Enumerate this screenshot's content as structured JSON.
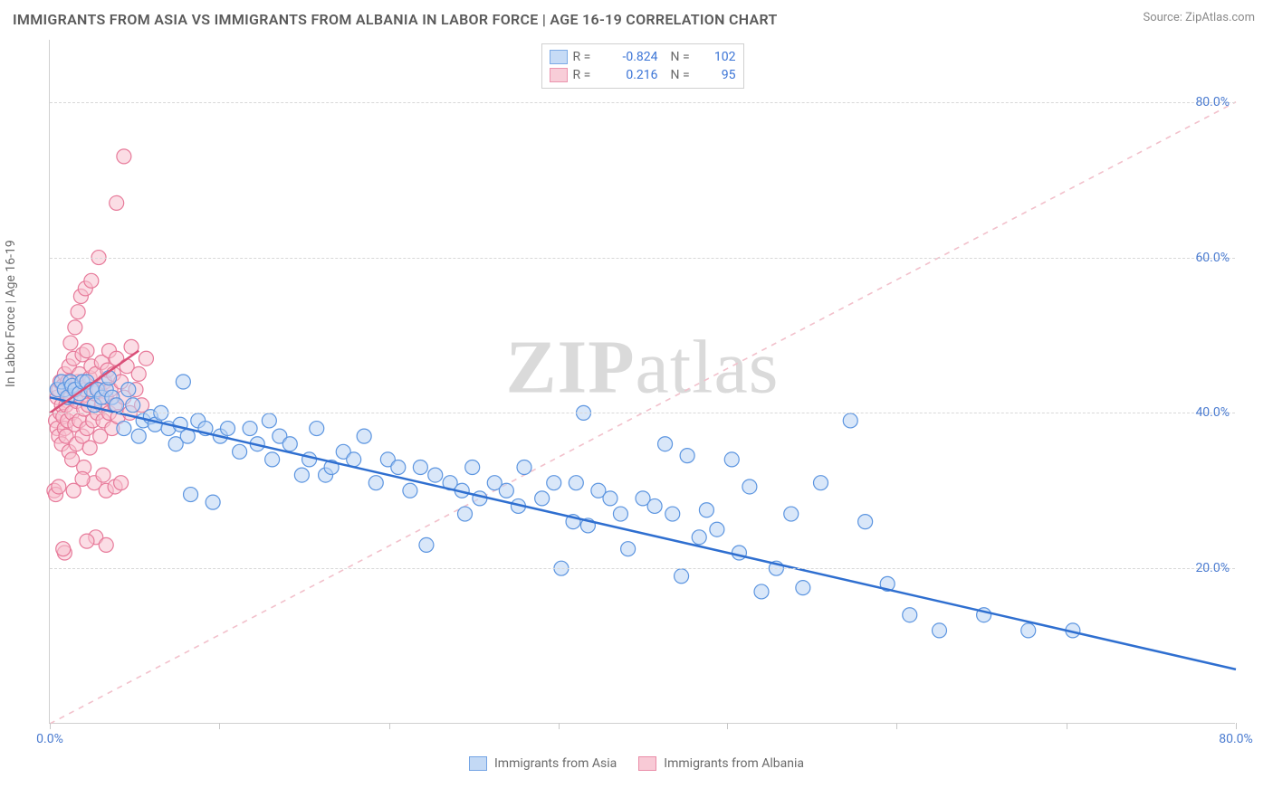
{
  "title": "IMMIGRANTS FROM ASIA VS IMMIGRANTS FROM ALBANIA IN LABOR FORCE | AGE 16-19 CORRELATION CHART",
  "source_label": "Source: ZipAtlas.com",
  "watermark_bold": "ZIP",
  "watermark_light": "atlas",
  "chart": {
    "type": "scatter",
    "background_color": "#ffffff",
    "grid_color": "#d8d8d8",
    "axis_color": "#d0d0d0",
    "tick_color": "#c8c8c8",
    "label_color": "#4a7bd0",
    "axis_title_color": "#6a6a6a",
    "xlim": [
      0,
      80
    ],
    "ylim": [
      0,
      88
    ],
    "x_ticks": [
      0,
      11.4,
      22.9,
      34.3,
      45.7,
      57.1,
      68.6,
      80
    ],
    "x_tick_labels": {
      "0": "0.0%",
      "80": "80.0%"
    },
    "y_gridlines": [
      20,
      40,
      60,
      80
    ],
    "y_tick_labels": {
      "20": "20.0%",
      "40": "40.0%",
      "60": "60.0%",
      "80": "80.0%"
    },
    "y_axis_title": "In Labor Force | Age 16-19",
    "marker_radius": 8,
    "marker_stroke_width": 1.2,
    "diagonal_color": "#f2c0cb",
    "series": [
      {
        "name": "Immigrants from Asia",
        "fill": "#b9d3f4",
        "stroke": "#5c95e0",
        "fill_opacity": 0.55,
        "r_value": "-0.824",
        "n_value": "102",
        "trend": {
          "x1": 0,
          "y1": 42,
          "x2": 80,
          "y2": 7,
          "color": "#2f6fd0",
          "width": 2.5
        },
        "points": [
          [
            0.5,
            43
          ],
          [
            0.8,
            44
          ],
          [
            1.0,
            43
          ],
          [
            1.2,
            42
          ],
          [
            1.4,
            44
          ],
          [
            1.5,
            43.5
          ],
          [
            1.7,
            43
          ],
          [
            2.0,
            42.5
          ],
          [
            2.2,
            44
          ],
          [
            2.5,
            44
          ],
          [
            2.8,
            43
          ],
          [
            3.0,
            41
          ],
          [
            3.2,
            43
          ],
          [
            3.5,
            42
          ],
          [
            3.8,
            43
          ],
          [
            4.0,
            44.5
          ],
          [
            4.2,
            42
          ],
          [
            4.5,
            41
          ],
          [
            5.0,
            38
          ],
          [
            5.3,
            43
          ],
          [
            5.6,
            41
          ],
          [
            6.0,
            37
          ],
          [
            6.3,
            39
          ],
          [
            6.8,
            39.5
          ],
          [
            7.1,
            38.5
          ],
          [
            7.5,
            40
          ],
          [
            8.0,
            38
          ],
          [
            8.5,
            36
          ],
          [
            8.8,
            38.5
          ],
          [
            9.3,
            37
          ],
          [
            9.0,
            44
          ],
          [
            9.5,
            29.5
          ],
          [
            10.0,
            39
          ],
          [
            10.5,
            38
          ],
          [
            11.0,
            28.5
          ],
          [
            11.5,
            37
          ],
          [
            12.0,
            38
          ],
          [
            12.8,
            35
          ],
          [
            13.5,
            38
          ],
          [
            14.0,
            36
          ],
          [
            14.8,
            39
          ],
          [
            15.0,
            34
          ],
          [
            15.5,
            37
          ],
          [
            16.2,
            36
          ],
          [
            17.0,
            32
          ],
          [
            17.5,
            34
          ],
          [
            18.0,
            38
          ],
          [
            18.6,
            32
          ],
          [
            19.0,
            33
          ],
          [
            19.8,
            35
          ],
          [
            20.5,
            34
          ],
          [
            21.2,
            37
          ],
          [
            22.0,
            31
          ],
          [
            22.8,
            34
          ],
          [
            23.5,
            33
          ],
          [
            24.3,
            30
          ],
          [
            25.0,
            33
          ],
          [
            25.4,
            23
          ],
          [
            26.0,
            32
          ],
          [
            27.0,
            31
          ],
          [
            27.8,
            30
          ],
          [
            28.5,
            33
          ],
          [
            28.0,
            27
          ],
          [
            29.0,
            29
          ],
          [
            30.0,
            31
          ],
          [
            30.8,
            30
          ],
          [
            31.6,
            28
          ],
          [
            32.0,
            33
          ],
          [
            33.2,
            29
          ],
          [
            34.0,
            31
          ],
          [
            34.5,
            20
          ],
          [
            35.3,
            26
          ],
          [
            35.5,
            31
          ],
          [
            36.0,
            40
          ],
          [
            36.3,
            25.5
          ],
          [
            37.0,
            30
          ],
          [
            37.8,
            29
          ],
          [
            38.5,
            27
          ],
          [
            39.0,
            22.5
          ],
          [
            40.0,
            29
          ],
          [
            40.8,
            28
          ],
          [
            41.5,
            36
          ],
          [
            42.0,
            27
          ],
          [
            42.6,
            19
          ],
          [
            43.0,
            34.5
          ],
          [
            43.8,
            24
          ],
          [
            44.3,
            27.5
          ],
          [
            45.0,
            25
          ],
          [
            46.0,
            34
          ],
          [
            46.5,
            22
          ],
          [
            47.2,
            30.5
          ],
          [
            48.0,
            17
          ],
          [
            49.0,
            20
          ],
          [
            50.0,
            27
          ],
          [
            50.8,
            17.5
          ],
          [
            52.0,
            31
          ],
          [
            54.0,
            39
          ],
          [
            55.0,
            26
          ],
          [
            56.5,
            18
          ],
          [
            58.0,
            14
          ],
          [
            60.0,
            12
          ],
          [
            63.0,
            14
          ],
          [
            66.0,
            12
          ],
          [
            69.0,
            12
          ]
        ]
      },
      {
        "name": "Immigrants from Albania",
        "fill": "#f7c1cf",
        "stroke": "#e77a9a",
        "fill_opacity": 0.55,
        "r_value": "0.216",
        "n_value": "95",
        "trend": {
          "x1": 0,
          "y1": 40,
          "x2": 6,
          "y2": 48,
          "color": "#d94f78",
          "width": 2.5
        },
        "points": [
          [
            0.3,
            30
          ],
          [
            0.4,
            39
          ],
          [
            0.5,
            38
          ],
          [
            0.5,
            42
          ],
          [
            0.6,
            37
          ],
          [
            0.6,
            43
          ],
          [
            0.7,
            40
          ],
          [
            0.7,
            44
          ],
          [
            0.8,
            36
          ],
          [
            0.8,
            41
          ],
          [
            0.9,
            39.5
          ],
          [
            0.9,
            43.5
          ],
          [
            1.0,
            38
          ],
          [
            1.0,
            45
          ],
          [
            1.0,
            22
          ],
          [
            1.1,
            41
          ],
          [
            1.1,
            37
          ],
          [
            1.2,
            44
          ],
          [
            1.2,
            39
          ],
          [
            1.3,
            46
          ],
          [
            1.3,
            35
          ],
          [
            1.4,
            42
          ],
          [
            1.4,
            49
          ],
          [
            1.5,
            40
          ],
          [
            1.5,
            34
          ],
          [
            1.6,
            43
          ],
          [
            1.6,
            47
          ],
          [
            1.7,
            38.5
          ],
          [
            1.7,
            51
          ],
          [
            1.8,
            41.5
          ],
          [
            1.8,
            36
          ],
          [
            1.9,
            44
          ],
          [
            1.9,
            53
          ],
          [
            2.0,
            39
          ],
          [
            2.0,
            45
          ],
          [
            2.1,
            42
          ],
          [
            2.1,
            55
          ],
          [
            2.2,
            37
          ],
          [
            2.2,
            47.5
          ],
          [
            2.3,
            40.5
          ],
          [
            2.3,
            33
          ],
          [
            2.4,
            43
          ],
          [
            2.4,
            56
          ],
          [
            2.5,
            38
          ],
          [
            2.5,
            48
          ],
          [
            2.6,
            41
          ],
          [
            2.7,
            44.5
          ],
          [
            2.7,
            35.5
          ],
          [
            2.8,
            46
          ],
          [
            2.8,
            57
          ],
          [
            2.9,
            39
          ],
          [
            3.0,
            42.5
          ],
          [
            3.0,
            31
          ],
          [
            3.1,
            45
          ],
          [
            3.1,
            24
          ],
          [
            3.2,
            40
          ],
          [
            3.3,
            43
          ],
          [
            3.3,
            60
          ],
          [
            3.4,
            37
          ],
          [
            3.5,
            41
          ],
          [
            3.5,
            46.5
          ],
          [
            3.6,
            39
          ],
          [
            3.7,
            44
          ],
          [
            3.8,
            42
          ],
          [
            3.8,
            23
          ],
          [
            3.9,
            45.5
          ],
          [
            4.0,
            40
          ],
          [
            4.0,
            48
          ],
          [
            4.1,
            43
          ],
          [
            4.2,
            38
          ],
          [
            4.3,
            45
          ],
          [
            4.4,
            41
          ],
          [
            4.5,
            47
          ],
          [
            4.5,
            67
          ],
          [
            4.6,
            39.5
          ],
          [
            4.8,
            44
          ],
          [
            5.0,
            42
          ],
          [
            5.0,
            73
          ],
          [
            5.2,
            46
          ],
          [
            5.4,
            40
          ],
          [
            5.5,
            48.5
          ],
          [
            5.8,
            43
          ],
          [
            6.0,
            45
          ],
          [
            6.2,
            41
          ],
          [
            6.5,
            47
          ],
          [
            0.4,
            29.5
          ],
          [
            0.6,
            30.5
          ],
          [
            1.6,
            30
          ],
          [
            2.2,
            31.5
          ],
          [
            3.6,
            32
          ],
          [
            3.8,
            30
          ],
          [
            4.4,
            30.5
          ],
          [
            4.8,
            31
          ],
          [
            0.9,
            22.5
          ],
          [
            2.5,
            23.5
          ]
        ]
      }
    ]
  }
}
